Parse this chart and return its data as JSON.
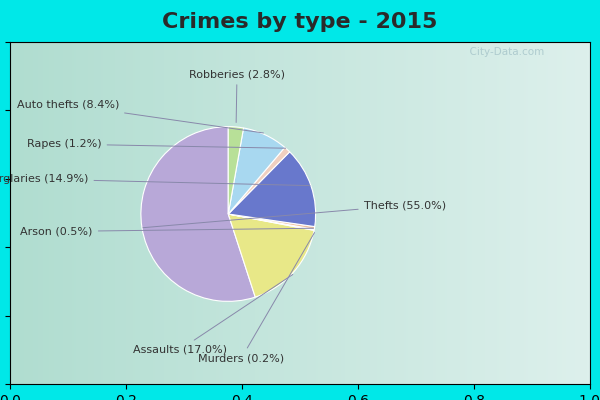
{
  "title": "Crimes by type - 2015",
  "title_fontsize": 16,
  "title_fontweight": "bold",
  "title_color": "#2a2a2a",
  "labels": [
    "Thefts",
    "Assaults",
    "Murders",
    "Arson",
    "Burglaries",
    "Rapes",
    "Auto thefts",
    "Robberies"
  ],
  "values": [
    55.0,
    17.0,
    0.2,
    0.5,
    14.9,
    1.2,
    8.4,
    2.8
  ],
  "pct_values": [
    55.0,
    17.0,
    0.2,
    0.5,
    14.9,
    1.2,
    8.4,
    2.8
  ],
  "colors": [
    "#b8a8d8",
    "#e8e888",
    "#f8d8d0",
    "#f0c0a0",
    "#6878cc",
    "#f0d0c0",
    "#a8d8f0",
    "#b8e098"
  ],
  "startangle": 90,
  "figsize": [
    6.0,
    4.0
  ],
  "dpi": 100,
  "cyan_color": "#00e8e8",
  "bg_color_left": "#b8e8d8",
  "bg_color_right": "#e0f0f0",
  "label_fontsize": 8,
  "label_color": "#333333",
  "line_color": "#8888aa"
}
